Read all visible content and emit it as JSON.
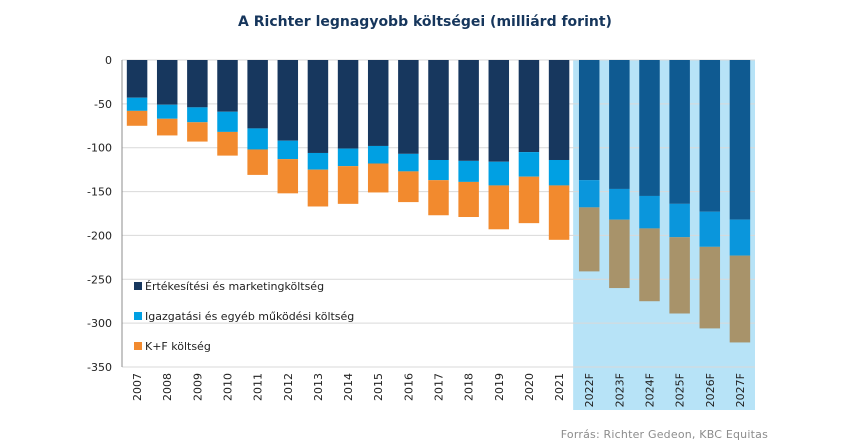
{
  "chart_data": {
    "type": "bar",
    "stacked": true,
    "title": "A Richter legnagyobb költségei (milliárd forint)",
    "source": "Forrás: Richter Gedeon, KBC Equitas",
    "categories": [
      "2007",
      "2008",
      "2009",
      "2010",
      "2011",
      "2012",
      "2013",
      "2014",
      "2015",
      "2016",
      "2017",
      "2018",
      "2019",
      "2020",
      "2021",
      "2022F",
      "2023F",
      "2024F",
      "2025F",
      "2026F",
      "2027F"
    ],
    "forecast_start": "2022F",
    "ylim": [
      -350,
      0
    ],
    "yticks": [
      0,
      -50,
      -100,
      -150,
      -200,
      -250,
      -300,
      -350
    ],
    "grid": true,
    "legend_position": "lower-left",
    "series": [
      {
        "name": "Értékesítési és marketingköltség",
        "color": "#17375e",
        "forecast_color": "#0f5a91",
        "values": [
          -43,
          -51,
          -54,
          -59,
          -78,
          -92,
          -106,
          -101,
          -98,
          -107,
          -114,
          -115,
          -116,
          -105,
          -114,
          -137,
          -147,
          -155,
          -164,
          -173,
          -182
        ]
      },
      {
        "name": "Igazgatási és egyéb működési költség",
        "color": "#00a0e3",
        "forecast_color": "#0a96dc",
        "values": [
          -15,
          -16,
          -17,
          -23,
          -24,
          -21,
          -19,
          -20,
          -20,
          -20,
          -23,
          -24,
          -27,
          -28,
          -29,
          -31,
          -35,
          -37,
          -38,
          -40,
          -41
        ]
      },
      {
        "name": "K+F költség",
        "color": "#f28a2e",
        "forecast_color": "#a8936a",
        "values": [
          -17,
          -19,
          -22,
          -27,
          -29,
          -39,
          -42,
          -43,
          -33,
          -35,
          -40,
          -40,
          -50,
          -53,
          -62,
          -73,
          -78,
          -83,
          -87,
          -93,
          -99
        ]
      }
    ]
  }
}
